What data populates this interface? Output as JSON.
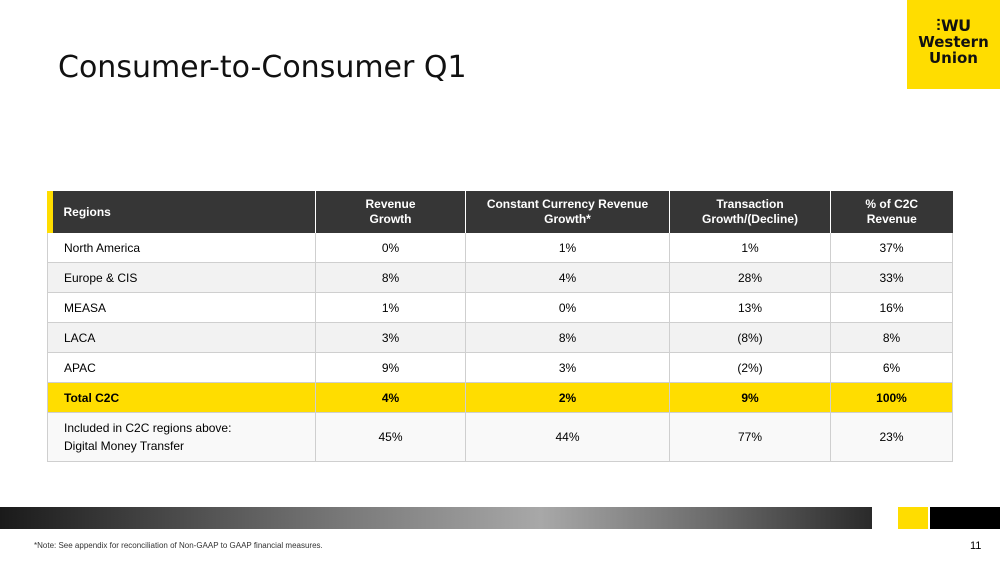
{
  "slide": {
    "title": "Consumer-to-Consumer Q1",
    "page_number": "11",
    "footnote": "*Note: See appendix for reconciliation of Non-GAAP to GAAP financial measures."
  },
  "logo": {
    "mark": "WU",
    "line1": "Western",
    "line2": "Union",
    "color": "#ffdd00"
  },
  "table": {
    "headers": [
      {
        "line1": "Regions",
        "line2": ""
      },
      {
        "line1": "Revenue",
        "line2": "Growth"
      },
      {
        "line1": "Constant Currency Revenue",
        "line2": "Growth*"
      },
      {
        "line1": "Transaction",
        "line2": "Growth/(Decline)"
      },
      {
        "line1": "% of C2C",
        "line2": "Revenue"
      }
    ],
    "rows": [
      {
        "region": "North America",
        "revenue_growth": "0%",
        "cc_revenue_growth": "1%",
        "transaction_growth": "1%",
        "pct_c2c": "37%"
      },
      {
        "region": "Europe & CIS",
        "revenue_growth": "8%",
        "cc_revenue_growth": "4%",
        "transaction_growth": "28%",
        "pct_c2c": "33%"
      },
      {
        "region": "MEASA",
        "revenue_growth": "1%",
        "cc_revenue_growth": "0%",
        "transaction_growth": "13%",
        "pct_c2c": "16%"
      },
      {
        "region": "LACA",
        "revenue_growth": "3%",
        "cc_revenue_growth": "8%",
        "transaction_growth": "(8%)",
        "pct_c2c": "8%"
      },
      {
        "region": "APAC",
        "revenue_growth": "9%",
        "cc_revenue_growth": "3%",
        "transaction_growth": "(2%)",
        "pct_c2c": "6%"
      }
    ],
    "total": {
      "region": "Total C2C",
      "revenue_growth": "4%",
      "cc_revenue_growth": "2%",
      "transaction_growth": "9%",
      "pct_c2c": "100%"
    },
    "digital": {
      "label_line1": "Included in C2C regions above:",
      "label_line2": "Digital Money Transfer",
      "revenue_growth": "45%",
      "cc_revenue_growth": "44%",
      "transaction_growth": "77%",
      "pct_c2c": "23%"
    }
  }
}
